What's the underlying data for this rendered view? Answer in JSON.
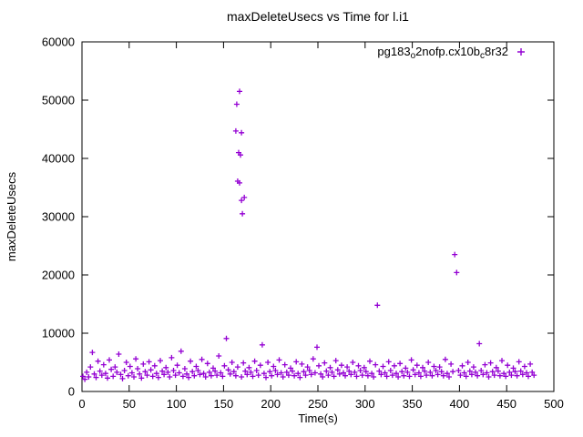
{
  "chart_data": {
    "type": "scatter",
    "title": "maxDeleteUsecs vs Time for l.i1",
    "xlabel": "Time(s)",
    "ylabel": "maxDeleteUsecs",
    "xlim": [
      0,
      500
    ],
    "ylim": [
      0,
      60000
    ],
    "xticks": [
      0,
      50,
      100,
      150,
      200,
      250,
      300,
      350,
      400,
      450,
      500
    ],
    "yticks": [
      0,
      10000,
      20000,
      30000,
      40000,
      50000,
      60000
    ],
    "grid": false,
    "legend_position": "top-right",
    "series": [
      {
        "name": "pg183_o2nofp.cx10b_c8r32",
        "marker": "plus",
        "color": "#9400d3",
        "points": [
          [
            1,
            2600
          ],
          [
            3,
            2100
          ],
          [
            5,
            3300
          ],
          [
            7,
            2500
          ],
          [
            9,
            4200
          ],
          [
            11,
            6700
          ],
          [
            13,
            3000
          ],
          [
            15,
            2400
          ],
          [
            17,
            5200
          ],
          [
            19,
            3500
          ],
          [
            21,
            2800
          ],
          [
            23,
            4600
          ],
          [
            25,
            3100
          ],
          [
            27,
            2300
          ],
          [
            29,
            5400
          ],
          [
            31,
            3800
          ],
          [
            33,
            2600
          ],
          [
            35,
            4200
          ],
          [
            37,
            3300
          ],
          [
            39,
            6400
          ],
          [
            41,
            2900
          ],
          [
            43,
            2200
          ],
          [
            45,
            3600
          ],
          [
            47,
            5000
          ],
          [
            49,
            2700
          ],
          [
            51,
            4300
          ],
          [
            53,
            3200
          ],
          [
            55,
            2500
          ],
          [
            57,
            5600
          ],
          [
            59,
            3900
          ],
          [
            61,
            3000
          ],
          [
            63,
            2300
          ],
          [
            65,
            4700
          ],
          [
            67,
            3400
          ],
          [
            69,
            2800
          ],
          [
            71,
            5100
          ],
          [
            73,
            3700
          ],
          [
            75,
            2600
          ],
          [
            77,
            4400
          ],
          [
            79,
            3100
          ],
          [
            81,
            2400
          ],
          [
            83,
            5300
          ],
          [
            85,
            3500
          ],
          [
            87,
            2900
          ],
          [
            89,
            4100
          ],
          [
            91,
            3300
          ],
          [
            93,
            2500
          ],
          [
            95,
            5800
          ],
          [
            97,
            3600
          ],
          [
            99,
            2800
          ],
          [
            101,
            4500
          ],
          [
            103,
            3200
          ],
          [
            105,
            6900
          ],
          [
            107,
            2600
          ],
          [
            109,
            3900
          ],
          [
            111,
            3000
          ],
          [
            113,
            2400
          ],
          [
            115,
            5200
          ],
          [
            117,
            3400
          ],
          [
            119,
            2700
          ],
          [
            121,
            4300
          ],
          [
            123,
            3600
          ],
          [
            125,
            2900
          ],
          [
            127,
            5500
          ],
          [
            129,
            3100
          ],
          [
            131,
            2500
          ],
          [
            133,
            4800
          ],
          [
            135,
            3300
          ],
          [
            137,
            2700
          ],
          [
            139,
            4000
          ],
          [
            141,
            3500
          ],
          [
            143,
            2800
          ],
          [
            145,
            6100
          ],
          [
            147,
            3200
          ],
          [
            149,
            2600
          ],
          [
            151,
            4400
          ],
          [
            153,
            9100
          ],
          [
            155,
            3700
          ],
          [
            157,
            3000
          ],
          [
            159,
            5000
          ],
          [
            161,
            3400
          ],
          [
            163,
            2700
          ],
          [
            163,
            44700
          ],
          [
            164,
            49300
          ],
          [
            165,
            4200
          ],
          [
            165,
            36100
          ],
          [
            166,
            41000
          ],
          [
            167,
            51500
          ],
          [
            167,
            35800
          ],
          [
            168,
            40600
          ],
          [
            169,
            2500
          ],
          [
            169,
            44400
          ],
          [
            169,
            32800
          ],
          [
            170,
            30500
          ],
          [
            171,
            4900
          ],
          [
            172,
            33300
          ],
          [
            173,
            3500
          ],
          [
            175,
            2900
          ],
          [
            177,
            4100
          ],
          [
            179,
            3300
          ],
          [
            181,
            2600
          ],
          [
            183,
            5200
          ],
          [
            185,
            3600
          ],
          [
            187,
            2800
          ],
          [
            189,
            4500
          ],
          [
            191,
            8000
          ],
          [
            193,
            3100
          ],
          [
            195,
            2400
          ],
          [
            197,
            5000
          ],
          [
            199,
            3400
          ],
          [
            201,
            2700
          ],
          [
            203,
            4300
          ],
          [
            205,
            3600
          ],
          [
            207,
            2900
          ],
          [
            209,
            5400
          ],
          [
            211,
            3200
          ],
          [
            213,
            2500
          ],
          [
            215,
            4600
          ],
          [
            217,
            3300
          ],
          [
            219,
            2800
          ],
          [
            221,
            4000
          ],
          [
            223,
            3500
          ],
          [
            225,
            2700
          ],
          [
            227,
            5100
          ],
          [
            229,
            3100
          ],
          [
            231,
            2400
          ],
          [
            233,
            4700
          ],
          [
            235,
            3400
          ],
          [
            237,
            2800
          ],
          [
            239,
            4200
          ],
          [
            241,
            3600
          ],
          [
            243,
            2900
          ],
          [
            245,
            5600
          ],
          [
            247,
            3200
          ],
          [
            249,
            7600
          ],
          [
            251,
            4400
          ],
          [
            253,
            3000
          ],
          [
            255,
            2500
          ],
          [
            257,
            4900
          ],
          [
            259,
            3500
          ],
          [
            261,
            2800
          ],
          [
            263,
            4100
          ],
          [
            265,
            3300
          ],
          [
            267,
            2600
          ],
          [
            269,
            5300
          ],
          [
            271,
            3700
          ],
          [
            273,
            3000
          ],
          [
            275,
            4500
          ],
          [
            277,
            3200
          ],
          [
            279,
            2700
          ],
          [
            281,
            4200
          ],
          [
            283,
            3500
          ],
          [
            285,
            2900
          ],
          [
            287,
            5000
          ],
          [
            289,
            3300
          ],
          [
            291,
            2600
          ],
          [
            293,
            4400
          ],
          [
            295,
            3600
          ],
          [
            297,
            2800
          ],
          [
            299,
            4100
          ],
          [
            301,
            3400
          ],
          [
            303,
            2700
          ],
          [
            305,
            5200
          ],
          [
            307,
            3100
          ],
          [
            309,
            2500
          ],
          [
            311,
            4600
          ],
          [
            313,
            14800
          ],
          [
            315,
            3500
          ],
          [
            317,
            2900
          ],
          [
            319,
            4300
          ],
          [
            321,
            3200
          ],
          [
            323,
            2600
          ],
          [
            325,
            5100
          ],
          [
            327,
            3600
          ],
          [
            329,
            2800
          ],
          [
            331,
            4400
          ],
          [
            333,
            3100
          ],
          [
            335,
            2500
          ],
          [
            337,
            4800
          ],
          [
            339,
            3400
          ],
          [
            341,
            2700
          ],
          [
            343,
            4000
          ],
          [
            345,
            3300
          ],
          [
            347,
            2600
          ],
          [
            349,
            5400
          ],
          [
            351,
            3700
          ],
          [
            353,
            2900
          ],
          [
            355,
            4500
          ],
          [
            357,
            3200
          ],
          [
            359,
            2600
          ],
          [
            361,
            4100
          ],
          [
            363,
            3500
          ],
          [
            365,
            2800
          ],
          [
            367,
            5000
          ],
          [
            369,
            3300
          ],
          [
            371,
            2700
          ],
          [
            373,
            4300
          ],
          [
            375,
            3600
          ],
          [
            377,
            2900
          ],
          [
            379,
            4200
          ],
          [
            381,
            3400
          ],
          [
            383,
            2700
          ],
          [
            385,
            5500
          ],
          [
            387,
            3100
          ],
          [
            389,
            2500
          ],
          [
            391,
            4700
          ],
          [
            393,
            3400
          ],
          [
            395,
            23500
          ],
          [
            397,
            20400
          ],
          [
            399,
            3600
          ],
          [
            401,
            2800
          ],
          [
            403,
            4400
          ],
          [
            405,
            3200
          ],
          [
            407,
            2600
          ],
          [
            409,
            5000
          ],
          [
            411,
            3500
          ],
          [
            413,
            2900
          ],
          [
            415,
            4200
          ],
          [
            417,
            3300
          ],
          [
            419,
            2700
          ],
          [
            421,
            8200
          ],
          [
            423,
            3600
          ],
          [
            425,
            2900
          ],
          [
            427,
            4600
          ],
          [
            429,
            3200
          ],
          [
            431,
            2500
          ],
          [
            433,
            4900
          ],
          [
            435,
            3400
          ],
          [
            437,
            2800
          ],
          [
            439,
            4100
          ],
          [
            441,
            3500
          ],
          [
            443,
            2700
          ],
          [
            445,
            5300
          ],
          [
            447,
            3100
          ],
          [
            449,
            2600
          ],
          [
            451,
            4500
          ],
          [
            453,
            3300
          ],
          [
            455,
            2800
          ],
          [
            457,
            4000
          ],
          [
            459,
            3400
          ],
          [
            461,
            2700
          ],
          [
            463,
            5100
          ],
          [
            465,
            3500
          ],
          [
            467,
            2900
          ],
          [
            469,
            4300
          ],
          [
            471,
            3200
          ],
          [
            473,
            2600
          ],
          [
            475,
            4700
          ],
          [
            477,
            3300
          ],
          [
            479,
            2800
          ]
        ]
      }
    ]
  },
  "legend_display": {
    "parts": [
      {
        "t": "pg183"
      },
      {
        "t": "o",
        "sub": true
      },
      {
        "t": "2nofp.cx10b"
      },
      {
        "t": "c",
        "sub": true
      },
      {
        "t": "8r32"
      }
    ]
  },
  "style": {
    "marker_color": "#9400d3",
    "axis_color": "#000000",
    "background": "#ffffff"
  }
}
